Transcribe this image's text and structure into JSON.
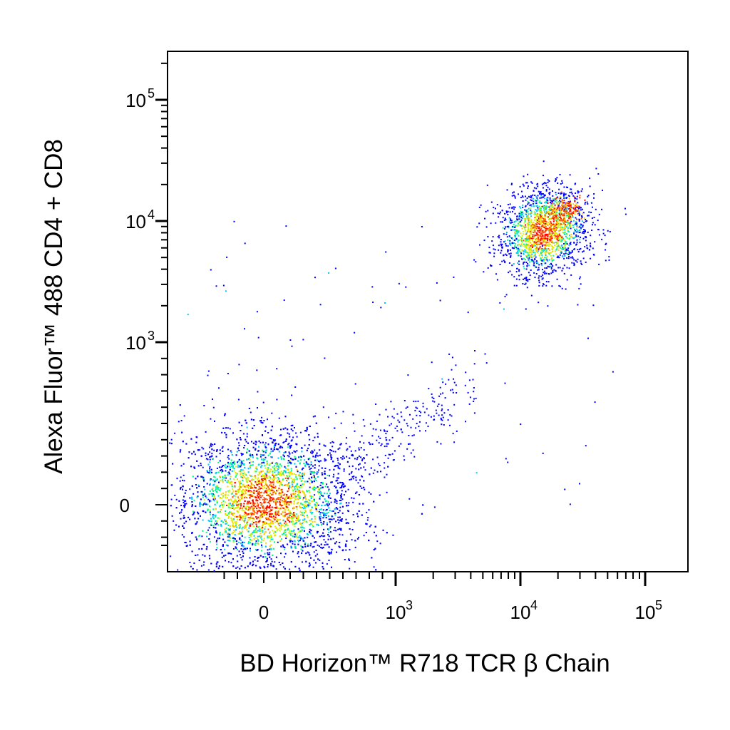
{
  "chart_data": {
    "type": "scatter",
    "subtype": "flow-cytometry-pseudocolor-density-plot",
    "xlabel": "BD Horizon™ R718 TCR β Chain",
    "ylabel": "Alexa Fluor™ 488 CD4 + CD8",
    "x_scale": "biexponential",
    "y_scale": "biexponential",
    "xlim": [
      -300,
      200000
    ],
    "ylim": [
      -250,
      200000
    ],
    "x_ticks": [
      {
        "value": 0,
        "base": "0",
        "exp": ""
      },
      {
        "value": 1000,
        "base": "10",
        "exp": "3"
      },
      {
        "value": 10000,
        "base": "10",
        "exp": "4"
      },
      {
        "value": 100000,
        "base": "10",
        "exp": "5"
      }
    ],
    "y_ticks": [
      {
        "value": 0,
        "base": "0",
        "exp": ""
      },
      {
        "value": 1000,
        "base": "10",
        "exp": "3"
      },
      {
        "value": 10000,
        "base": "10",
        "exp": "4"
      },
      {
        "value": 100000,
        "base": "10",
        "exp": "5"
      }
    ],
    "grid": false,
    "legend": "none",
    "populations": [
      {
        "name": "",
        "center_x": 0,
        "center_y": 20,
        "relative_size": "large",
        "peak_density": "red"
      },
      {
        "name": "",
        "center_x": 15000,
        "center_y": 10000,
        "relative_size": "medium",
        "peak_density": "red"
      }
    ],
    "density_colors": [
      "#0000ff",
      "#00c8ff",
      "#00ff80",
      "#c8ff00",
      "#ffd000",
      "#ff6000",
      "#ff0000"
    ]
  }
}
